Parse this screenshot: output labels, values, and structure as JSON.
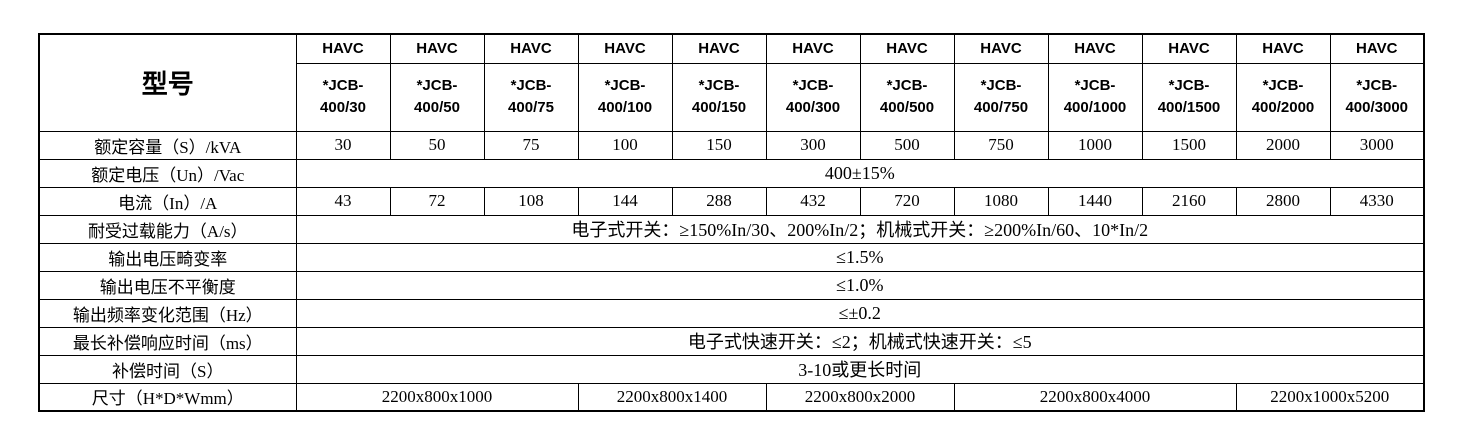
{
  "colors": {
    "border": "#000000",
    "text": "#000000",
    "background": "#ffffff"
  },
  "table": {
    "corner_label": "型号",
    "brand": "HAVC",
    "models": [
      "*JCB-\n400/30",
      "*JCB-\n400/50",
      "*JCB-\n400/75",
      "*JCB-\n400/100",
      "*JCB-\n400/150",
      "*JCB-\n400/300",
      "*JCB-\n400/500",
      "*JCB-\n400/750",
      "*JCB-\n400/1000",
      "*JCB-\n400/1500",
      "*JCB-\n400/2000",
      "*JCB-\n400/3000"
    ],
    "rows": [
      {
        "label": "额定容量（S）/kVA",
        "type": "values",
        "values": [
          "30",
          "50",
          "75",
          "100",
          "150",
          "300",
          "500",
          "750",
          "1000",
          "1500",
          "2000",
          "3000"
        ]
      },
      {
        "label": "额定电压（Un）/Vac",
        "type": "span",
        "value": "400±15%"
      },
      {
        "label": "电流（In）/A",
        "type": "values",
        "values": [
          "43",
          "72",
          "108",
          "144",
          "288",
          "432",
          "720",
          "1080",
          "1440",
          "2160",
          "2800",
          "4330"
        ]
      },
      {
        "label": "耐受过载能力（A/s）",
        "type": "span",
        "value": "电子式开关：≥150%In/30、200%In/2；机械式开关：≥200%In/60、10*In/2"
      },
      {
        "label": "输出电压畸变率",
        "type": "span",
        "value": "≤1.5%"
      },
      {
        "label": "输出电压不平衡度",
        "type": "span",
        "value": "≤1.0%"
      },
      {
        "label": "输出频率变化范围（Hz）",
        "type": "span",
        "value": "≤±0.2"
      },
      {
        "label": "最长补偿响应时间（ms）",
        "type": "span",
        "value": "电子式快速开关：≤2；机械式快速开关：≤5"
      },
      {
        "label": "补偿时间（S）",
        "type": "span",
        "value": "3-10或更长时间"
      },
      {
        "label": "尺寸（H*D*Wmm）",
        "type": "groups",
        "groups": [
          {
            "value": "2200x800x1000",
            "span": 3
          },
          {
            "value": "2200x800x1400",
            "span": 2
          },
          {
            "value": "2200x800x2000",
            "span": 2
          },
          {
            "value": "2200x800x4000",
            "span": 3
          },
          {
            "value": "2200x1000x5200",
            "span": 2
          }
        ]
      }
    ]
  }
}
